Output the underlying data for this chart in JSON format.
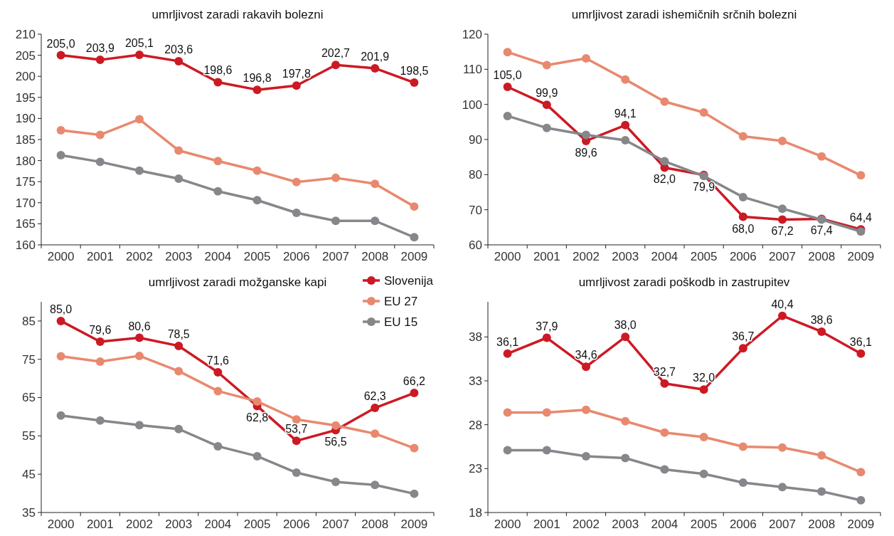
{
  "chart_data": [
    {
      "type": "line",
      "title": "umrljivost zaradi rakavih bolezni",
      "categories": [
        "2000",
        "2001",
        "2002",
        "2003",
        "2004",
        "2005",
        "2006",
        "2007",
        "2008",
        "2009"
      ],
      "ylim": [
        160,
        210
      ],
      "yticks": [
        160,
        165,
        170,
        175,
        180,
        185,
        190,
        195,
        200,
        205,
        210
      ],
      "marker": "circle",
      "series": [
        {
          "color": "#cc1a24",
          "values": [
            205.0,
            203.9,
            205.1,
            203.6,
            198.6,
            196.8,
            197.8,
            202.7,
            201.9,
            198.5
          ],
          "value_labels": [
            "205,0",
            "203,9",
            "205,1",
            "203,6",
            "198,6",
            "196,8",
            "197,8",
            "202,7",
            "201,9",
            "198,5"
          ]
        },
        {
          "color": "#e8896f",
          "values": [
            187.2,
            186.1,
            189.8,
            182.4,
            179.9,
            177.6,
            174.9,
            175.9,
            174.5,
            169.1
          ]
        },
        {
          "color": "#85878b",
          "values": [
            181.3,
            179.7,
            177.6,
            175.7,
            172.7,
            170.6,
            167.6,
            165.7,
            165.7,
            161.8
          ]
        }
      ]
    },
    {
      "type": "line",
      "title": "umrljivost zaradi ishemičnih srčnih bolezni",
      "categories": [
        "2000",
        "2001",
        "2002",
        "2003",
        "2004",
        "2005",
        "2006",
        "2007",
        "2008",
        "2009"
      ],
      "ylim": [
        60,
        120
      ],
      "yticks": [
        60,
        70,
        80,
        90,
        100,
        110,
        120
      ],
      "marker": "circle",
      "series": [
        {
          "color": "#cc1a24",
          "values": [
            105.0,
            99.9,
            89.6,
            94.1,
            82.0,
            79.9,
            68.0,
            67.2,
            67.4,
            64.4
          ],
          "value_labels": [
            "105,0",
            "99,9",
            "89,6",
            "94,1",
            "82,0",
            "79,9",
            "68,0",
            "67,2",
            "67,4",
            "64,4"
          ]
        },
        {
          "color": "#e8896f",
          "values": [
            114.9,
            111.2,
            113.1,
            107.1,
            100.8,
            97.7,
            90.9,
            89.6,
            85.2,
            79.8
          ]
        },
        {
          "color": "#85878b",
          "values": [
            96.7,
            93.3,
            91.3,
            89.8,
            83.8,
            79.6,
            73.6,
            70.3,
            67.2,
            63.8
          ]
        }
      ]
    },
    {
      "type": "line",
      "title": "umrljivost zaradi možganske kapi",
      "categories": [
        "2000",
        "2001",
        "2002",
        "2003",
        "2004",
        "2005",
        "2006",
        "2007",
        "2008",
        "2009"
      ],
      "ylim": [
        35,
        90
      ],
      "yticks": [
        35,
        45,
        55,
        65,
        75,
        85
      ],
      "marker": "circle",
      "legend": "top right",
      "series": [
        {
          "name": "Slovenija",
          "color": "#cc1a24",
          "values": [
            85.0,
            79.6,
            80.6,
            78.5,
            71.6,
            62.8,
            53.7,
            56.5,
            62.3,
            66.2
          ],
          "value_labels": [
            "85,0",
            "79,6",
            "80,6",
            "78,5",
            "71,6",
            "62,8",
            "53,7",
            "56,5",
            "62,3",
            "66,2"
          ]
        },
        {
          "name": "EU 27",
          "color": "#e8896f",
          "values": [
            75.8,
            74.4,
            75.9,
            71.9,
            66.7,
            64.0,
            59.3,
            57.7,
            55.6,
            51.8
          ]
        },
        {
          "name": "EU 15",
          "color": "#85878b",
          "values": [
            60.3,
            59.0,
            57.8,
            56.8,
            52.3,
            49.7,
            45.4,
            43.0,
            42.2,
            39.9
          ]
        }
      ]
    },
    {
      "type": "line",
      "title": "umrljivost zaradi poškodb in zastrupitev",
      "categories": [
        "2000",
        "2001",
        "2002",
        "2003",
        "2004",
        "2005",
        "2006",
        "2007",
        "2008",
        "2009"
      ],
      "ylim": [
        18,
        42
      ],
      "yticks": [
        18,
        23,
        28,
        33,
        38
      ],
      "marker": "circle",
      "series": [
        {
          "color": "#cc1a24",
          "values": [
            36.1,
            37.9,
            34.6,
            38.0,
            32.7,
            32.0,
            36.7,
            40.4,
            38.6,
            36.1
          ],
          "value_labels": [
            "36,1",
            "37,9",
            "34,6",
            "38,0",
            "32,7",
            "32,0",
            "36,7",
            "40,4",
            "38,6",
            "36,1"
          ]
        },
        {
          "color": "#e8896f",
          "values": [
            29.4,
            29.4,
            29.7,
            28.4,
            27.1,
            26.6,
            25.5,
            25.4,
            24.5,
            22.6
          ]
        },
        {
          "color": "#85878b",
          "values": [
            25.1,
            25.1,
            24.4,
            24.2,
            22.9,
            22.4,
            21.4,
            20.9,
            20.4,
            19.4
          ]
        }
      ]
    }
  ]
}
